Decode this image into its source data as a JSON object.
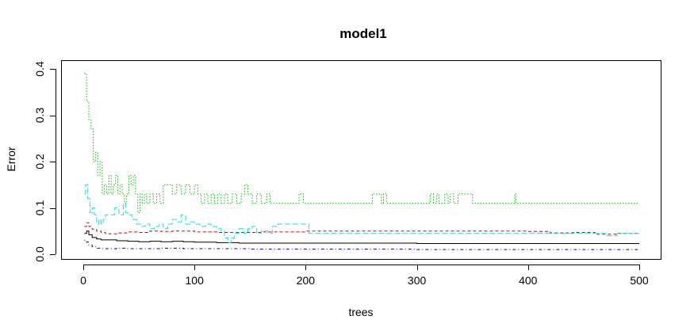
{
  "chart_data": {
    "type": "line",
    "title": "model1",
    "xlabel": "trees",
    "ylabel": "Error",
    "xlim": [
      0,
      500
    ],
    "ylim": [
      0,
      0.4
    ],
    "x_ticks": [
      0,
      100,
      200,
      300,
      400,
      500
    ],
    "x_tick_labels": [
      "0",
      "100",
      "200",
      "300",
      "400",
      "500"
    ],
    "y_ticks": [
      0.0,
      0.1,
      0.2,
      0.3,
      0.4
    ],
    "y_tick_labels": [
      "0.0",
      "0.1",
      "0.2",
      "0.3",
      "0.4"
    ],
    "grid": false,
    "legend": "none",
    "series": [
      {
        "color": "#000000",
        "dash": "solid",
        "points": [
          [
            1,
            0.045
          ],
          [
            3,
            0.05
          ],
          [
            5,
            0.042
          ],
          [
            8,
            0.036
          ],
          [
            12,
            0.033
          ],
          [
            16,
            0.031
          ],
          [
            20,
            0.031
          ],
          [
            30,
            0.029
          ],
          [
            40,
            0.028
          ],
          [
            50,
            0.027
          ],
          [
            60,
            0.028
          ],
          [
            70,
            0.027
          ],
          [
            80,
            0.028
          ],
          [
            90,
            0.027
          ],
          [
            100,
            0.026
          ],
          [
            120,
            0.025
          ],
          [
            140,
            0.024
          ],
          [
            160,
            0.024
          ],
          [
            180,
            0.024
          ],
          [
            200,
            0.024
          ],
          [
            250,
            0.024
          ],
          [
            300,
            0.023
          ],
          [
            350,
            0.023
          ],
          [
            400,
            0.023
          ],
          [
            450,
            0.023
          ],
          [
            500,
            0.023
          ]
        ]
      },
      {
        "color": "#dd0000",
        "dash": "dashed",
        "points": [
          [
            1,
            0.06
          ],
          [
            3,
            0.068
          ],
          [
            5,
            0.06
          ],
          [
            8,
            0.054
          ],
          [
            12,
            0.05
          ],
          [
            16,
            0.047
          ],
          [
            20,
            0.044
          ],
          [
            30,
            0.046
          ],
          [
            40,
            0.048
          ],
          [
            50,
            0.047
          ],
          [
            60,
            0.05
          ],
          [
            70,
            0.049
          ],
          [
            80,
            0.05
          ],
          [
            100,
            0.048
          ],
          [
            120,
            0.047
          ],
          [
            140,
            0.047
          ],
          [
            160,
            0.048
          ],
          [
            180,
            0.048
          ],
          [
            200,
            0.05
          ],
          [
            250,
            0.05
          ],
          [
            300,
            0.05
          ],
          [
            350,
            0.05
          ],
          [
            400,
            0.049
          ],
          [
            420,
            0.046
          ],
          [
            440,
            0.047
          ],
          [
            460,
            0.043
          ],
          [
            480,
            0.045
          ],
          [
            500,
            0.045
          ]
        ]
      },
      {
        "color": "#00bb00",
        "dash": "dotted",
        "points": [
          [
            1,
            0.39
          ],
          [
            3,
            0.33
          ],
          [
            5,
            0.29
          ],
          [
            7,
            0.27
          ],
          [
            9,
            0.2
          ],
          [
            11,
            0.22
          ],
          [
            13,
            0.17
          ],
          [
            15,
            0.2
          ],
          [
            17,
            0.13
          ],
          [
            19,
            0.15
          ],
          [
            21,
            0.13
          ],
          [
            23,
            0.17
          ],
          [
            25,
            0.13
          ],
          [
            27,
            0.15
          ],
          [
            29,
            0.17
          ],
          [
            31,
            0.13
          ],
          [
            33,
            0.15
          ],
          [
            35,
            0.13
          ],
          [
            37,
            0.11
          ],
          [
            39,
            0.13
          ],
          [
            41,
            0.17
          ],
          [
            43,
            0.15
          ],
          [
            45,
            0.17
          ],
          [
            47,
            0.13
          ],
          [
            49,
            0.09
          ],
          [
            51,
            0.13
          ],
          [
            53,
            0.11
          ],
          [
            55,
            0.13
          ],
          [
            57,
            0.11
          ],
          [
            60,
            0.13
          ],
          [
            63,
            0.11
          ],
          [
            66,
            0.13
          ],
          [
            69,
            0.11
          ],
          [
            72,
            0.15
          ],
          [
            76,
            0.15
          ],
          [
            80,
            0.13
          ],
          [
            84,
            0.15
          ],
          [
            88,
            0.13
          ],
          [
            92,
            0.15
          ],
          [
            96,
            0.13
          ],
          [
            100,
            0.15
          ],
          [
            103,
            0.13
          ],
          [
            106,
            0.11
          ],
          [
            109,
            0.13
          ],
          [
            112,
            0.11
          ],
          [
            115,
            0.13
          ],
          [
            118,
            0.11
          ],
          [
            121,
            0.13
          ],
          [
            124,
            0.11
          ],
          [
            127,
            0.13
          ],
          [
            130,
            0.11
          ],
          [
            134,
            0.13
          ],
          [
            138,
            0.11
          ],
          [
            142,
            0.13
          ],
          [
            145,
            0.15
          ],
          [
            148,
            0.13
          ],
          [
            152,
            0.11
          ],
          [
            156,
            0.13
          ],
          [
            160,
            0.11
          ],
          [
            165,
            0.13
          ],
          [
            168,
            0.11
          ],
          [
            175,
            0.11
          ],
          [
            180,
            0.11
          ],
          [
            185,
            0.11
          ],
          [
            190,
            0.11
          ],
          [
            194,
            0.13
          ],
          [
            198,
            0.11
          ],
          [
            220,
            0.11
          ],
          [
            240,
            0.11
          ],
          [
            257,
            0.11
          ],
          [
            260,
            0.13
          ],
          [
            265,
            0.13
          ],
          [
            268,
            0.11
          ],
          [
            270,
            0.13
          ],
          [
            273,
            0.11
          ],
          [
            290,
            0.11
          ],
          [
            310,
            0.11
          ],
          [
            312,
            0.13
          ],
          [
            315,
            0.11
          ],
          [
            318,
            0.13
          ],
          [
            320,
            0.11
          ],
          [
            325,
            0.13
          ],
          [
            328,
            0.11
          ],
          [
            330,
            0.13
          ],
          [
            333,
            0.11
          ],
          [
            337,
            0.13
          ],
          [
            345,
            0.13
          ],
          [
            350,
            0.11
          ],
          [
            370,
            0.11
          ],
          [
            387,
            0.11
          ],
          [
            388,
            0.13
          ],
          [
            389,
            0.11
          ],
          [
            420,
            0.11
          ],
          [
            460,
            0.11
          ],
          [
            500,
            0.11
          ]
        ]
      },
      {
        "color": "#0000cc",
        "dash": "dotdash",
        "points": [
          [
            1,
            0.03
          ],
          [
            3,
            0.026
          ],
          [
            5,
            0.02
          ],
          [
            8,
            0.016
          ],
          [
            12,
            0.013
          ],
          [
            16,
            0.012
          ],
          [
            20,
            0.012
          ],
          [
            30,
            0.013
          ],
          [
            40,
            0.012
          ],
          [
            50,
            0.012
          ],
          [
            60,
            0.012
          ],
          [
            70,
            0.013
          ],
          [
            80,
            0.013
          ],
          [
            90,
            0.012
          ],
          [
            100,
            0.012
          ],
          [
            130,
            0.012
          ],
          [
            150,
            0.011
          ],
          [
            200,
            0.011
          ],
          [
            250,
            0.011
          ],
          [
            300,
            0.01
          ],
          [
            350,
            0.01
          ],
          [
            400,
            0.01
          ],
          [
            450,
            0.01
          ],
          [
            500,
            0.01
          ]
        ]
      },
      {
        "color": "#22dddd",
        "dash": "longdash",
        "points": [
          [
            1,
            0.13
          ],
          [
            2,
            0.15
          ],
          [
            4,
            0.12
          ],
          [
            6,
            0.09
          ],
          [
            8,
            0.1
          ],
          [
            10,
            0.085
          ],
          [
            12,
            0.065
          ],
          [
            14,
            0.075
          ],
          [
            16,
            0.065
          ],
          [
            18,
            0.075
          ],
          [
            20,
            0.085
          ],
          [
            24,
            0.085
          ],
          [
            28,
            0.1
          ],
          [
            32,
            0.085
          ],
          [
            36,
            0.11
          ],
          [
            38,
            0.09
          ],
          [
            40,
            0.085
          ],
          [
            44,
            0.075
          ],
          [
            48,
            0.065
          ],
          [
            52,
            0.06
          ],
          [
            56,
            0.065
          ],
          [
            60,
            0.055
          ],
          [
            64,
            0.06
          ],
          [
            68,
            0.065
          ],
          [
            72,
            0.055
          ],
          [
            76,
            0.065
          ],
          [
            80,
            0.075
          ],
          [
            84,
            0.07
          ],
          [
            88,
            0.085
          ],
          [
            92,
            0.065
          ],
          [
            96,
            0.07
          ],
          [
            100,
            0.065
          ],
          [
            105,
            0.06
          ],
          [
            110,
            0.065
          ],
          [
            115,
            0.06
          ],
          [
            120,
            0.055
          ],
          [
            124,
            0.05
          ],
          [
            127,
            0.035
          ],
          [
            130,
            0.025
          ],
          [
            133,
            0.035
          ],
          [
            136,
            0.045
          ],
          [
            140,
            0.055
          ],
          [
            144,
            0.045
          ],
          [
            148,
            0.055
          ],
          [
            152,
            0.06
          ],
          [
            156,
            0.045
          ],
          [
            160,
            0.05
          ],
          [
            166,
            0.045
          ],
          [
            170,
            0.06
          ],
          [
            175,
            0.065
          ],
          [
            190,
            0.065
          ],
          [
            200,
            0.065
          ],
          [
            203,
            0.045
          ],
          [
            250,
            0.045
          ],
          [
            300,
            0.045
          ],
          [
            350,
            0.045
          ],
          [
            400,
            0.045
          ],
          [
            450,
            0.045
          ],
          [
            460,
            0.045
          ],
          [
            470,
            0.04
          ],
          [
            480,
            0.045
          ],
          [
            500,
            0.045
          ]
        ]
      }
    ]
  }
}
